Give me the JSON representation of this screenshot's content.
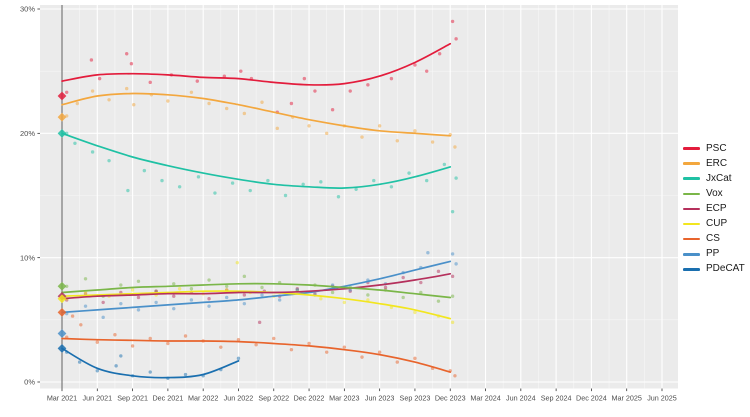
{
  "chart_data": {
    "type": "scatter",
    "subtype": "poll-tracker-with-loess-smooth-lines",
    "title": "",
    "xlabel": "",
    "ylabel": "",
    "x_unit": "months since Mar 2021",
    "x_tick_labels": [
      "Mar 2021",
      "Jun 2021",
      "Sep 2021",
      "Dec 2021",
      "Mar 2022",
      "Jun 2022",
      "Sep 2022",
      "Dec 2022",
      "Mar 2023",
      "Jun 2023",
      "Sep 2023",
      "Dec 2023",
      "Mar 2024",
      "Jun 2024",
      "Sep 2024",
      "Dec 2024",
      "Mar 2025",
      "Jun 2025"
    ],
    "x_tick_months": [
      0,
      3,
      6,
      9,
      12,
      15,
      18,
      21,
      24,
      27,
      30,
      33,
      36,
      39,
      42,
      45,
      48,
      51
    ],
    "y_ticks": [
      {
        "value": 0,
        "label": "0%"
      },
      {
        "value": 10,
        "label": "10%"
      },
      {
        "value": 20,
        "label": "20%"
      },
      {
        "value": 30,
        "label": "30%"
      }
    ],
    "ylim": [
      0,
      30.3
    ],
    "xlim_months": [
      -1.8,
      52.3
    ],
    "grid": "on",
    "legend_position": "right",
    "election_marker_month": 0,
    "series": [
      {
        "name": "PSC",
        "color": "#e31c3c",
        "election_result": 23.0,
        "trend_x": [
          0,
          3,
          6,
          9,
          12,
          15,
          18,
          21,
          24,
          27,
          30,
          33
        ],
        "trend_y": [
          24.2,
          24.7,
          24.8,
          24.7,
          24.5,
          24.4,
          24.1,
          23.9,
          24.0,
          24.6,
          25.7,
          27.2
        ],
        "points": [
          [
            0.4,
            23.3
          ],
          [
            2.5,
            25.9
          ],
          [
            3.2,
            24.4
          ],
          [
            5.5,
            26.4
          ],
          [
            5.9,
            25.6
          ],
          [
            7.5,
            24.1
          ],
          [
            9.3,
            24.7
          ],
          [
            11.5,
            24.2
          ],
          [
            13.8,
            24.6
          ],
          [
            15.2,
            25.0
          ],
          [
            16.1,
            24.4
          ],
          [
            18.3,
            21.7
          ],
          [
            19.5,
            22.4
          ],
          [
            20.6,
            24.4
          ],
          [
            21.5,
            23.4
          ],
          [
            23.0,
            21.9
          ],
          [
            24.5,
            23.4
          ],
          [
            26.0,
            23.9
          ],
          [
            28.0,
            24.4
          ],
          [
            30.0,
            25.5
          ],
          [
            31.0,
            25.0
          ],
          [
            32.1,
            26.4
          ],
          [
            33.2,
            29.0
          ],
          [
            33.5,
            27.6
          ]
        ]
      },
      {
        "name": "ERC",
        "color": "#f3a73e",
        "election_result": 21.3,
        "trend_x": [
          0,
          3,
          6,
          9,
          12,
          15,
          18,
          21,
          24,
          27,
          30,
          33
        ],
        "trend_y": [
          22.3,
          23.0,
          23.2,
          23.1,
          22.8,
          22.3,
          21.7,
          21.1,
          20.6,
          20.2,
          20.0,
          19.8
        ],
        "points": [
          [
            0.4,
            21.4
          ],
          [
            1.3,
            22.4
          ],
          [
            2.6,
            23.4
          ],
          [
            4.0,
            22.7
          ],
          [
            5.5,
            23.6
          ],
          [
            6.1,
            22.3
          ],
          [
            7.6,
            23.1
          ],
          [
            9.0,
            22.6
          ],
          [
            11.0,
            23.3
          ],
          [
            12.5,
            22.4
          ],
          [
            14.0,
            22.0
          ],
          [
            15.5,
            21.6
          ],
          [
            17.0,
            22.5
          ],
          [
            18.3,
            20.4
          ],
          [
            19.6,
            21.3
          ],
          [
            21.0,
            20.6
          ],
          [
            22.5,
            20.0
          ],
          [
            24.0,
            20.6
          ],
          [
            25.5,
            19.7
          ],
          [
            27.0,
            20.6
          ],
          [
            28.5,
            19.4
          ],
          [
            30.0,
            20.2
          ],
          [
            31.5,
            19.3
          ],
          [
            33.0,
            19.9
          ],
          [
            33.4,
            18.9
          ]
        ]
      },
      {
        "name": "JxCat",
        "color": "#1fc1a4",
        "election_result": 20.0,
        "trend_x": [
          0,
          3,
          6,
          9,
          12,
          15,
          18,
          21,
          24,
          27,
          30,
          33
        ],
        "trend_y": [
          20.0,
          19.0,
          18.1,
          17.4,
          16.8,
          16.3,
          15.9,
          15.7,
          15.6,
          15.9,
          16.5,
          17.3
        ],
        "points": [
          [
            0.4,
            20.0
          ],
          [
            1.1,
            19.2
          ],
          [
            2.6,
            18.5
          ],
          [
            4.0,
            17.8
          ],
          [
            5.6,
            15.4
          ],
          [
            7.0,
            17.0
          ],
          [
            8.5,
            16.2
          ],
          [
            10.0,
            15.7
          ],
          [
            11.6,
            16.5
          ],
          [
            13.0,
            15.2
          ],
          [
            14.5,
            16.0
          ],
          [
            16.0,
            15.4
          ],
          [
            17.5,
            16.2
          ],
          [
            19.0,
            15.0
          ],
          [
            20.5,
            15.9
          ],
          [
            22.0,
            16.1
          ],
          [
            23.5,
            14.9
          ],
          [
            25.0,
            15.5
          ],
          [
            26.5,
            16.2
          ],
          [
            28.0,
            15.7
          ],
          [
            29.5,
            16.8
          ],
          [
            31.0,
            16.2
          ],
          [
            32.5,
            17.5
          ],
          [
            33.2,
            13.7
          ],
          [
            33.5,
            16.4
          ]
        ]
      },
      {
        "name": "Vox",
        "color": "#7ab648",
        "election_result": 7.7,
        "trend_x": [
          0,
          3,
          6,
          9,
          12,
          15,
          18,
          21,
          24,
          27,
          30,
          33
        ],
        "trend_y": [
          7.2,
          7.4,
          7.6,
          7.7,
          7.8,
          7.9,
          7.9,
          7.8,
          7.6,
          7.4,
          7.1,
          6.8
        ],
        "points": [
          [
            0.4,
            7.7
          ],
          [
            2.0,
            8.3
          ],
          [
            3.5,
            6.9
          ],
          [
            5.0,
            7.8
          ],
          [
            6.5,
            8.1
          ],
          [
            8.0,
            7.3
          ],
          [
            9.5,
            7.9
          ],
          [
            11.0,
            7.5
          ],
          [
            12.5,
            8.2
          ],
          [
            14.0,
            7.7
          ],
          [
            15.5,
            8.5
          ],
          [
            17.0,
            7.6
          ],
          [
            18.5,
            8.0
          ],
          [
            20.0,
            7.4
          ],
          [
            21.5,
            7.8
          ],
          [
            23.0,
            7.2
          ],
          [
            24.5,
            7.6
          ],
          [
            26.0,
            7.0
          ],
          [
            27.5,
            7.4
          ],
          [
            29.0,
            6.8
          ],
          [
            30.5,
            7.2
          ],
          [
            32.0,
            6.5
          ],
          [
            33.2,
            6.9
          ]
        ]
      },
      {
        "name": "ECP",
        "color": "#b5305c",
        "election_result": 6.9,
        "trend_x": [
          0,
          3,
          6,
          9,
          12,
          15,
          18,
          21,
          24,
          27,
          30,
          33
        ],
        "trend_y": [
          6.7,
          6.9,
          7.0,
          7.1,
          7.1,
          7.2,
          7.2,
          7.3,
          7.5,
          7.8,
          8.2,
          8.7
        ],
        "points": [
          [
            0.4,
            6.6
          ],
          [
            2.0,
            7.1
          ],
          [
            3.5,
            6.4
          ],
          [
            5.0,
            7.2
          ],
          [
            6.5,
            6.8
          ],
          [
            8.0,
            7.3
          ],
          [
            9.5,
            6.9
          ],
          [
            11.0,
            7.2
          ],
          [
            12.5,
            6.7
          ],
          [
            14.0,
            7.4
          ],
          [
            15.5,
            7.0
          ],
          [
            16.8,
            4.8
          ],
          [
            17.2,
            7.3
          ],
          [
            18.5,
            6.9
          ],
          [
            20.0,
            7.5
          ],
          [
            21.5,
            7.1
          ],
          [
            23.0,
            7.7
          ],
          [
            24.5,
            7.3
          ],
          [
            26.0,
            8.0
          ],
          [
            27.5,
            7.6
          ],
          [
            29.0,
            8.4
          ],
          [
            30.5,
            8.0
          ],
          [
            32.0,
            8.9
          ],
          [
            33.2,
            8.5
          ]
        ]
      },
      {
        "name": "CUP",
        "color": "#f2e61f",
        "election_result": 6.7,
        "trend_x": [
          0,
          3,
          6,
          9,
          12,
          15,
          18,
          21,
          24,
          27,
          30,
          33
        ],
        "trend_y": [
          6.9,
          7.0,
          7.1,
          7.2,
          7.3,
          7.3,
          7.2,
          7.0,
          6.7,
          6.3,
          5.8,
          5.1
        ],
        "points": [
          [
            0.4,
            6.7
          ],
          [
            2.0,
            7.2
          ],
          [
            4.0,
            6.9
          ],
          [
            6.0,
            7.4
          ],
          [
            8.0,
            7.0
          ],
          [
            10.0,
            7.5
          ],
          [
            12.0,
            7.1
          ],
          [
            14.0,
            7.4
          ],
          [
            14.9,
            9.6
          ],
          [
            16.0,
            7.2
          ],
          [
            18.0,
            6.9
          ],
          [
            20.0,
            7.3
          ],
          [
            22.0,
            6.7
          ],
          [
            24.0,
            6.4
          ],
          [
            26.0,
            6.6
          ],
          [
            28.0,
            6.0
          ],
          [
            30.0,
            5.6
          ],
          [
            32.0,
            5.3
          ],
          [
            33.2,
            4.8
          ]
        ]
      },
      {
        "name": "CS",
        "color": "#e8642c",
        "election_result": 5.6,
        "trend_x": [
          0,
          3,
          6,
          9,
          12,
          15,
          18,
          21,
          24,
          27,
          30,
          33
        ],
        "trend_y": [
          3.5,
          3.4,
          3.35,
          3.3,
          3.3,
          3.25,
          3.1,
          2.9,
          2.6,
          2.2,
          1.6,
          0.8
        ],
        "points": [
          [
            0.4,
            3.6
          ],
          [
            0.9,
            5.3
          ],
          [
            1.6,
            4.6
          ],
          [
            3.0,
            3.2
          ],
          [
            4.5,
            3.8
          ],
          [
            6.0,
            2.9
          ],
          [
            7.5,
            3.5
          ],
          [
            9.0,
            3.1
          ],
          [
            10.5,
            3.7
          ],
          [
            12.0,
            3.3
          ],
          [
            13.5,
            2.8
          ],
          [
            15.0,
            3.4
          ],
          [
            16.5,
            3.0
          ],
          [
            18.0,
            3.5
          ],
          [
            19.5,
            2.6
          ],
          [
            21.0,
            3.1
          ],
          [
            22.5,
            2.4
          ],
          [
            24.0,
            2.8
          ],
          [
            25.5,
            2.0
          ],
          [
            27.0,
            2.4
          ],
          [
            28.5,
            1.6
          ],
          [
            30.0,
            1.9
          ],
          [
            31.5,
            1.1
          ],
          [
            33.0,
            0.9
          ],
          [
            33.4,
            0.5
          ]
        ]
      },
      {
        "name": "PP",
        "color": "#4a90c9",
        "election_result": 3.9,
        "trend_x": [
          0,
          3,
          6,
          9,
          12,
          15,
          18,
          21,
          24,
          27,
          30,
          33
        ],
        "trend_y": [
          5.6,
          5.8,
          6.0,
          6.2,
          6.4,
          6.6,
          6.9,
          7.2,
          7.7,
          8.3,
          9.0,
          9.7
        ],
        "points": [
          [
            0.4,
            5.5
          ],
          [
            2.0,
            6.1
          ],
          [
            3.5,
            5.2
          ],
          [
            5.0,
            6.3
          ],
          [
            6.5,
            5.8
          ],
          [
            8.0,
            6.4
          ],
          [
            9.5,
            5.9
          ],
          [
            11.0,
            6.6
          ],
          [
            12.5,
            6.1
          ],
          [
            14.0,
            6.8
          ],
          [
            15.5,
            6.3
          ],
          [
            17.0,
            7.0
          ],
          [
            18.5,
            6.6
          ],
          [
            20.0,
            7.4
          ],
          [
            21.5,
            7.0
          ],
          [
            23.0,
            7.8
          ],
          [
            24.5,
            7.4
          ],
          [
            26.0,
            8.2
          ],
          [
            27.5,
            7.9
          ],
          [
            29.0,
            8.8
          ],
          [
            30.5,
            9.2
          ],
          [
            31.1,
            10.4
          ],
          [
            33.2,
            10.3
          ],
          [
            33.5,
            9.5
          ]
        ]
      },
      {
        "name": "PDeCAT",
        "color": "#1a6faf",
        "election_result": 2.7,
        "trend_x": [
          0,
          3,
          6,
          9,
          12,
          15
        ],
        "trend_y": [
          2.7,
          1.1,
          0.5,
          0.35,
          0.6,
          1.7
        ],
        "points": [
          [
            0.4,
            2.4
          ],
          [
            1.5,
            1.6
          ],
          [
            3.0,
            0.9
          ],
          [
            4.6,
            1.3
          ],
          [
            5.0,
            2.1
          ],
          [
            6.0,
            0.5
          ],
          [
            7.5,
            0.8
          ],
          [
            9.0,
            0.3
          ],
          [
            10.5,
            0.6
          ],
          [
            12.0,
            0.5
          ],
          [
            13.5,
            1.0
          ],
          [
            15.0,
            1.9
          ]
        ]
      }
    ]
  },
  "style_colors": {
    "panel_background": "#ebebeb",
    "grid_major": "#ffffff",
    "grid_minor": "#f7f7f7",
    "axis_text": "#4d4d4d",
    "tick_mark": "#333333",
    "election_line": "#5f5f5f",
    "page_background": "#ffffff"
  }
}
